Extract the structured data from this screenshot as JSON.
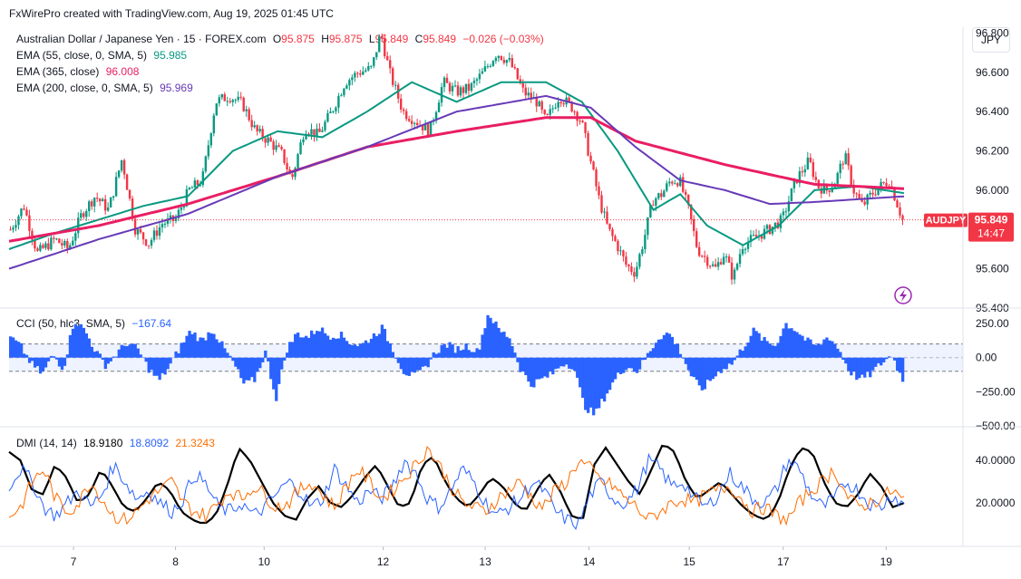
{
  "header": {
    "watermark": "FxWirePro created with TradingView.com, Aug 19, 2025 01:45 UTC"
  },
  "currency_button": "JPY",
  "symbol": {
    "title": "Australian Dollar / Japanese Yen · 15 · FOREX.com",
    "o_label": "O",
    "o": "95.875",
    "h_label": "H",
    "h": "95.875",
    "l_label": "L",
    "l": "95.849",
    "c_label": "C",
    "c": "95.849",
    "change": "−0.026 (−0.03%)"
  },
  "indicators": {
    "ema55": {
      "label": "EMA (55, close, 0, SMA, 5)",
      "value": "95.985",
      "color": "#089981"
    },
    "ema365": {
      "label": "EMA (365, close)",
      "value": "96.008",
      "color": "#e91e63"
    },
    "ema200": {
      "label": "EMA (200, close, 0, SMA, 5)",
      "value": "95.969",
      "color": "#673ab7"
    },
    "cci": {
      "label": "CCI (50, hlc3, SMA, 5)",
      "value": "−167.64",
      "color": "#2962ff"
    },
    "dmi": {
      "label": "DMI (14, 14)",
      "adx": "18.9180",
      "plus_di": "18.8092",
      "minus_di": "21.3243",
      "adx_color": "#000000",
      "plus_color": "#2962ff",
      "minus_color": "#ff6d00"
    }
  },
  "price_tag": {
    "symbol": "AUDJPY",
    "price": "95.849",
    "countdown": "14:47",
    "color": "#f23645"
  },
  "chart_data": [
    {
      "type": "candlestick",
      "title": "Australian Dollar / Japanese Yen · 15 · FOREX.com",
      "x_tick_labels": [
        "7",
        "8",
        "10",
        "12",
        "13",
        "14",
        "15",
        "17",
        "19"
      ],
      "y_ticks": [
        "96.800",
        "96.600",
        "96.400",
        "96.200",
        "96.000",
        "95.800",
        "95.600",
        "95.400"
      ],
      "ylim": [
        95.4,
        96.83
      ],
      "last_price": 95.849,
      "close_path": [
        [
          0.0,
          95.8
        ],
        [
          0.015,
          95.92
        ],
        [
          0.03,
          95.68
        ],
        [
          0.05,
          95.75
        ],
        [
          0.065,
          95.7
        ],
        [
          0.08,
          95.88
        ],
        [
          0.095,
          95.97
        ],
        [
          0.11,
          95.9
        ],
        [
          0.125,
          96.16
        ],
        [
          0.14,
          95.8
        ],
        [
          0.155,
          95.73
        ],
        [
          0.17,
          95.83
        ],
        [
          0.185,
          95.85
        ],
        [
          0.2,
          96.0
        ],
        [
          0.215,
          96.05
        ],
        [
          0.23,
          96.45
        ],
        [
          0.245,
          96.48
        ],
        [
          0.26,
          96.44
        ],
        [
          0.275,
          96.3
        ],
        [
          0.29,
          96.25
        ],
        [
          0.305,
          96.18
        ],
        [
          0.315,
          96.05
        ],
        [
          0.33,
          96.32
        ],
        [
          0.345,
          96.28
        ],
        [
          0.36,
          96.4
        ],
        [
          0.375,
          96.55
        ],
        [
          0.39,
          96.6
        ],
        [
          0.405,
          96.62
        ],
        [
          0.415,
          96.8
        ],
        [
          0.425,
          96.6
        ],
        [
          0.44,
          96.4
        ],
        [
          0.455,
          96.35
        ],
        [
          0.47,
          96.3
        ],
        [
          0.485,
          96.55
        ],
        [
          0.5,
          96.5
        ],
        [
          0.515,
          96.52
        ],
        [
          0.53,
          96.6
        ],
        [
          0.545,
          96.7
        ],
        [
          0.56,
          96.65
        ],
        [
          0.575,
          96.5
        ],
        [
          0.59,
          96.45
        ],
        [
          0.6,
          96.35
        ],
        [
          0.615,
          96.48
        ],
        [
          0.63,
          96.42
        ],
        [
          0.64,
          96.35
        ],
        [
          0.65,
          96.15
        ],
        [
          0.66,
          95.95
        ],
        [
          0.67,
          95.8
        ],
        [
          0.68,
          95.72
        ],
        [
          0.69,
          95.62
        ],
        [
          0.7,
          95.58
        ],
        [
          0.71,
          95.75
        ],
        [
          0.72,
          95.95
        ],
        [
          0.73,
          95.98
        ],
        [
          0.74,
          96.05
        ],
        [
          0.75,
          96.05
        ],
        [
          0.76,
          95.9
        ],
        [
          0.77,
          95.7
        ],
        [
          0.78,
          95.65
        ],
        [
          0.79,
          95.6
        ],
        [
          0.8,
          95.68
        ],
        [
          0.81,
          95.55
        ],
        [
          0.82,
          95.72
        ],
        [
          0.835,
          95.76
        ],
        [
          0.85,
          95.8
        ],
        [
          0.865,
          95.85
        ],
        [
          0.88,
          96.05
        ],
        [
          0.895,
          96.15
        ],
        [
          0.905,
          96.02
        ],
        [
          0.915,
          96.0
        ],
        [
          0.925,
          96.05
        ],
        [
          0.935,
          96.18
        ],
        [
          0.945,
          96.0
        ],
        [
          0.955,
          95.92
        ],
        [
          0.965,
          95.98
        ],
        [
          0.975,
          96.02
        ],
        [
          0.985,
          96.05
        ],
        [
          1.0,
          95.85
        ]
      ],
      "series": [
        {
          "name": "EMA (55, close, 0, SMA, 5)",
          "color": "#089981",
          "points": [
            [
              0.0,
              95.7
            ],
            [
              0.05,
              95.78
            ],
            [
              0.1,
              95.85
            ],
            [
              0.15,
              95.92
            ],
            [
              0.2,
              95.97
            ],
            [
              0.25,
              96.2
            ],
            [
              0.3,
              96.3
            ],
            [
              0.35,
              96.27
            ],
            [
              0.4,
              96.4
            ],
            [
              0.45,
              96.55
            ],
            [
              0.5,
              96.45
            ],
            [
              0.55,
              96.55
            ],
            [
              0.6,
              96.55
            ],
            [
              0.64,
              96.45
            ],
            [
              0.68,
              96.2
            ],
            [
              0.72,
              95.9
            ],
            [
              0.75,
              95.98
            ],
            [
              0.78,
              95.82
            ],
            [
              0.82,
              95.72
            ],
            [
              0.86,
              95.82
            ],
            [
              0.9,
              96.0
            ],
            [
              0.95,
              96.02
            ],
            [
              1.0,
              95.985
            ]
          ]
        },
        {
          "name": "EMA (365, close)",
          "color": "#e91e63",
          "points": [
            [
              0.0,
              95.74
            ],
            [
              0.1,
              95.82
            ],
            [
              0.2,
              95.93
            ],
            [
              0.3,
              96.07
            ],
            [
              0.4,
              96.22
            ],
            [
              0.5,
              96.3
            ],
            [
              0.6,
              96.37
            ],
            [
              0.65,
              96.37
            ],
            [
              0.7,
              96.25
            ],
            [
              0.8,
              96.13
            ],
            [
              0.9,
              96.03
            ],
            [
              1.0,
              96.008
            ]
          ]
        },
        {
          "name": "EMA (200, close, 0, SMA, 5)",
          "color": "#673ab7",
          "points": [
            [
              0.0,
              95.6
            ],
            [
              0.1,
              95.75
            ],
            [
              0.2,
              95.88
            ],
            [
              0.3,
              96.07
            ],
            [
              0.4,
              96.22
            ],
            [
              0.5,
              96.4
            ],
            [
              0.6,
              96.48
            ],
            [
              0.65,
              96.42
            ],
            [
              0.7,
              96.22
            ],
            [
              0.75,
              96.05
            ],
            [
              0.8,
              96.0
            ],
            [
              0.85,
              95.93
            ],
            [
              0.9,
              95.94
            ],
            [
              1.0,
              95.969
            ]
          ]
        }
      ]
    },
    {
      "type": "bar",
      "title": "CCI (50, hlc3, SMA, 5)",
      "y_ticks": [
        "250.00",
        "0.00",
        "−250.00",
        "−500.00"
      ],
      "ylim": [
        -500,
        350
      ],
      "bands": [
        100,
        -100
      ],
      "values": [
        150,
        80,
        -50,
        -120,
        20,
        -80,
        280,
        200,
        50,
        -60,
        30,
        110,
        60,
        -80,
        -170,
        -60,
        80,
        200,
        120,
        210,
        80,
        -40,
        -200,
        -160,
        40,
        -300,
        60,
        180,
        150,
        220,
        160,
        170,
        110,
        90,
        150,
        220,
        60,
        -100,
        -140,
        -80,
        40,
        100,
        60,
        90,
        40,
        330,
        200,
        150,
        -80,
        -200,
        -160,
        -120,
        -40,
        -60,
        -350,
        -420,
        -280,
        -150,
        -60,
        -100,
        20,
        150,
        180,
        60,
        -120,
        -240,
        -160,
        -80,
        -40,
        80,
        200,
        120,
        90,
        250,
        200,
        120,
        80,
        160,
        60,
        -100,
        -160,
        -120,
        -40,
        20,
        -167.64
      ],
      "last_value": -167.64
    },
    {
      "type": "line",
      "title": "DMI (14, 14)",
      "y_ticks": [
        "40.0000",
        "20.0000"
      ],
      "ylim": [
        0,
        55
      ],
      "series": [
        {
          "name": "ADX",
          "color": "#000000",
          "values": [
            44,
            40,
            26,
            24,
            38,
            32,
            20,
            24,
            36,
            28,
            18,
            16,
            22,
            30,
            26,
            16,
            12,
            10,
            14,
            28,
            46,
            40,
            30,
            20,
            14,
            12,
            22,
            28,
            20,
            18,
            24,
            32,
            38,
            28,
            18,
            20,
            38,
            42,
            30,
            22,
            18,
            24,
            32,
            28,
            20,
            16,
            26,
            34,
            26,
            14,
            12,
            38,
            46,
            38,
            30,
            24,
            36,
            48,
            44,
            30,
            22,
            26,
            30,
            24,
            18,
            14,
            12,
            20,
            36,
            46,
            44,
            30,
            20,
            18,
            24,
            34,
            28,
            18,
            20
          ]
        },
        {
          "name": "+DI",
          "color": "#2962ff",
          "values": [
            28,
            36,
            30,
            18,
            14,
            20,
            26,
            18,
            24,
            38,
            30,
            22,
            26,
            20,
            16,
            22,
            34,
            28,
            18,
            16,
            20,
            14,
            18,
            24,
            30,
            26,
            18,
            22,
            36,
            28,
            20,
            26,
            22,
            28,
            40,
            34,
            22,
            18,
            26,
            36,
            30,
            20,
            14,
            18,
            22,
            30,
            26,
            16,
            12,
            10,
            24,
            30,
            22,
            20,
            26,
            40,
            36,
            28,
            30,
            22,
            18,
            24,
            34,
            28,
            22,
            20,
            26,
            40,
            36,
            24,
            18,
            22,
            30,
            26,
            20,
            18,
            24,
            19
          ]
        },
        {
          "name": "−DI",
          "color": "#ff6d00",
          "values": [
            14,
            18,
            30,
            36,
            22,
            16,
            20,
            30,
            22,
            14,
            12,
            16,
            22,
            26,
            30,
            20,
            16,
            14,
            20,
            26,
            22,
            28,
            24,
            18,
            20,
            26,
            30,
            24,
            18,
            28,
            36,
            30,
            22,
            26,
            32,
            38,
            46,
            38,
            28,
            20,
            18,
            16,
            22,
            26,
            30,
            22,
            18,
            26,
            30,
            40,
            36,
            30,
            28,
            22,
            18,
            12,
            16,
            20,
            22,
            20,
            24,
            26,
            28,
            22,
            16,
            18,
            14,
            12,
            20,
            26,
            30,
            36,
            24,
            18,
            20,
            22,
            26,
            21
          ]
        }
      ]
    }
  ]
}
